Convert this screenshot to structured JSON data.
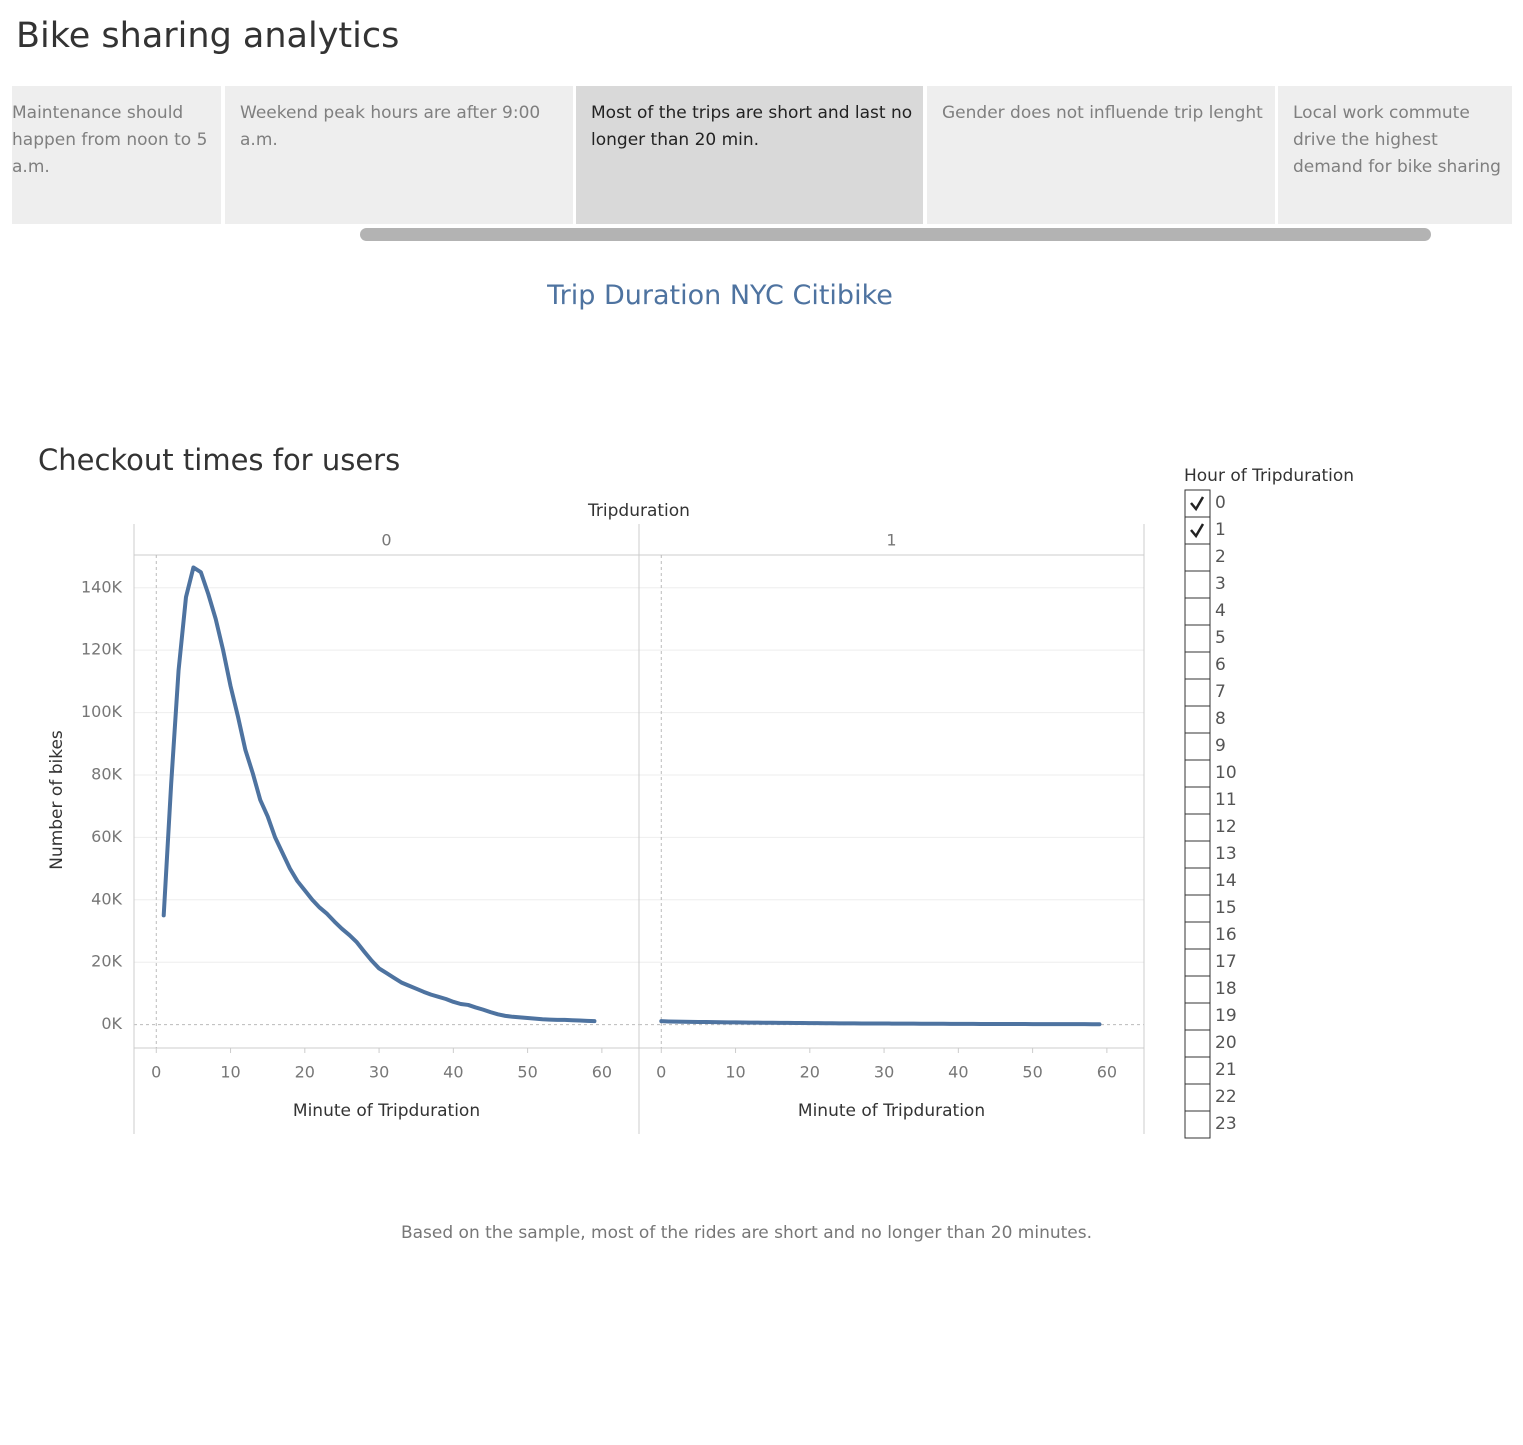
{
  "header": {
    "title": "Bike sharing analytics"
  },
  "story_points": [
    {
      "text": "Maintenance should happen from noon to 5 a.m."
    },
    {
      "text": "Weekend peak hours are after 9:00 a.m."
    },
    {
      "text": "Most of the trips are short and last no longer than 20 min.",
      "selected": true
    },
    {
      "text": "Gender does not influende trip lenght"
    },
    {
      "text": "Local work commute drive the highest demand for bike sharing"
    }
  ],
  "story_title": "Trip Duration NYC Citibike",
  "chart_data": {
    "type": "line",
    "title": "Checkout times for users",
    "column_label": "Tripduration",
    "xlabel": "Minute of Tripduration",
    "ylabel": "Number of bikes",
    "color": "#4e73a0",
    "grid": true,
    "ylim": [
      -7500,
      150500
    ],
    "yticks": [
      {
        "value": 0,
        "label": "0K"
      },
      {
        "value": 20000,
        "label": "20K"
      },
      {
        "value": 40000,
        "label": "40K"
      },
      {
        "value": 60000,
        "label": "60K"
      },
      {
        "value": 80000,
        "label": "80K"
      },
      {
        "value": 100000,
        "label": "100K"
      },
      {
        "value": 120000,
        "label": "120K"
      },
      {
        "value": 140000,
        "label": "140K"
      }
    ],
    "xlim": [
      -3,
      65
    ],
    "xticks": [
      0,
      10,
      20,
      30,
      40,
      50,
      60
    ],
    "panels": [
      {
        "name": "0",
        "x": [
          1,
          2,
          3,
          4,
          5,
          6,
          7,
          8,
          9,
          10,
          11,
          12,
          13,
          14,
          15,
          16,
          17,
          18,
          19,
          20,
          21,
          22,
          23,
          24,
          25,
          26,
          27,
          28,
          29,
          30,
          31,
          32,
          33,
          34,
          35,
          36,
          37,
          38,
          39,
          40,
          41,
          42,
          43,
          44,
          45,
          46,
          47,
          48,
          49,
          50,
          51,
          52,
          53,
          54,
          55,
          56,
          57,
          58,
          59
        ],
        "values": [
          35000,
          77000,
          113500,
          137000,
          146500,
          145000,
          138000,
          130000,
          120000,
          108500,
          98700,
          88000,
          80500,
          72000,
          66700,
          60000,
          55000,
          50000,
          46000,
          43000,
          40000,
          37500,
          35500,
          33000,
          30700,
          28700,
          26400,
          23400,
          20500,
          18000,
          16500,
          15000,
          13500,
          12500,
          11500,
          10500,
          9600,
          8900,
          8200,
          7300,
          6600,
          6300,
          5500,
          4800,
          4000,
          3300,
          2800,
          2500,
          2300,
          2100,
          1900,
          1700,
          1600,
          1500,
          1500,
          1400,
          1300,
          1200,
          1100
        ]
      },
      {
        "name": "1",
        "x": [
          0,
          1,
          2,
          3,
          4,
          5,
          6,
          7,
          8,
          9,
          10,
          11,
          12,
          13,
          14,
          15,
          16,
          17,
          18,
          19,
          20,
          21,
          22,
          23,
          24,
          25,
          26,
          27,
          28,
          29,
          30,
          31,
          32,
          33,
          34,
          35,
          36,
          37,
          38,
          39,
          40,
          41,
          42,
          43,
          44,
          45,
          46,
          47,
          48,
          49,
          50,
          51,
          52,
          53,
          54,
          55,
          56,
          57,
          58,
          59
        ],
        "values": [
          1100,
          1000,
          950,
          900,
          870,
          850,
          820,
          780,
          750,
          720,
          700,
          680,
          650,
          620,
          600,
          580,
          560,
          540,
          520,
          500,
          480,
          460,
          440,
          420,
          400,
          390,
          380,
          370,
          360,
          350,
          340,
          330,
          320,
          310,
          300,
          290,
          280,
          270,
          260,
          250,
          240,
          230,
          220,
          210,
          200,
          195,
          190,
          185,
          180,
          175,
          170,
          165,
          160,
          155,
          150,
          145,
          140,
          135,
          130,
          125
        ]
      }
    ]
  },
  "filter": {
    "title": "Hour of Tripduration",
    "options": [
      {
        "label": 0,
        "checked": true
      },
      {
        "label": 1,
        "checked": true
      },
      {
        "label": 2,
        "checked": false
      },
      {
        "label": 3,
        "checked": false
      },
      {
        "label": 4,
        "checked": false
      },
      {
        "label": 5,
        "checked": false
      },
      {
        "label": 6,
        "checked": false
      },
      {
        "label": 7,
        "checked": false
      },
      {
        "label": 8,
        "checked": false
      },
      {
        "label": 9,
        "checked": false
      },
      {
        "label": 10,
        "checked": false
      },
      {
        "label": 11,
        "checked": false
      },
      {
        "label": 12,
        "checked": false
      },
      {
        "label": 13,
        "checked": false
      },
      {
        "label": 14,
        "checked": false
      },
      {
        "label": 15,
        "checked": false
      },
      {
        "label": 16,
        "checked": false
      },
      {
        "label": 17,
        "checked": false
      },
      {
        "label": 18,
        "checked": false
      },
      {
        "label": 19,
        "checked": false
      },
      {
        "label": 20,
        "checked": false
      },
      {
        "label": 21,
        "checked": false
      },
      {
        "label": 22,
        "checked": false
      },
      {
        "label": 23,
        "checked": false
      }
    ]
  },
  "caption": "Based on the sample, most of the rides are short and no longer than 20 minutes."
}
